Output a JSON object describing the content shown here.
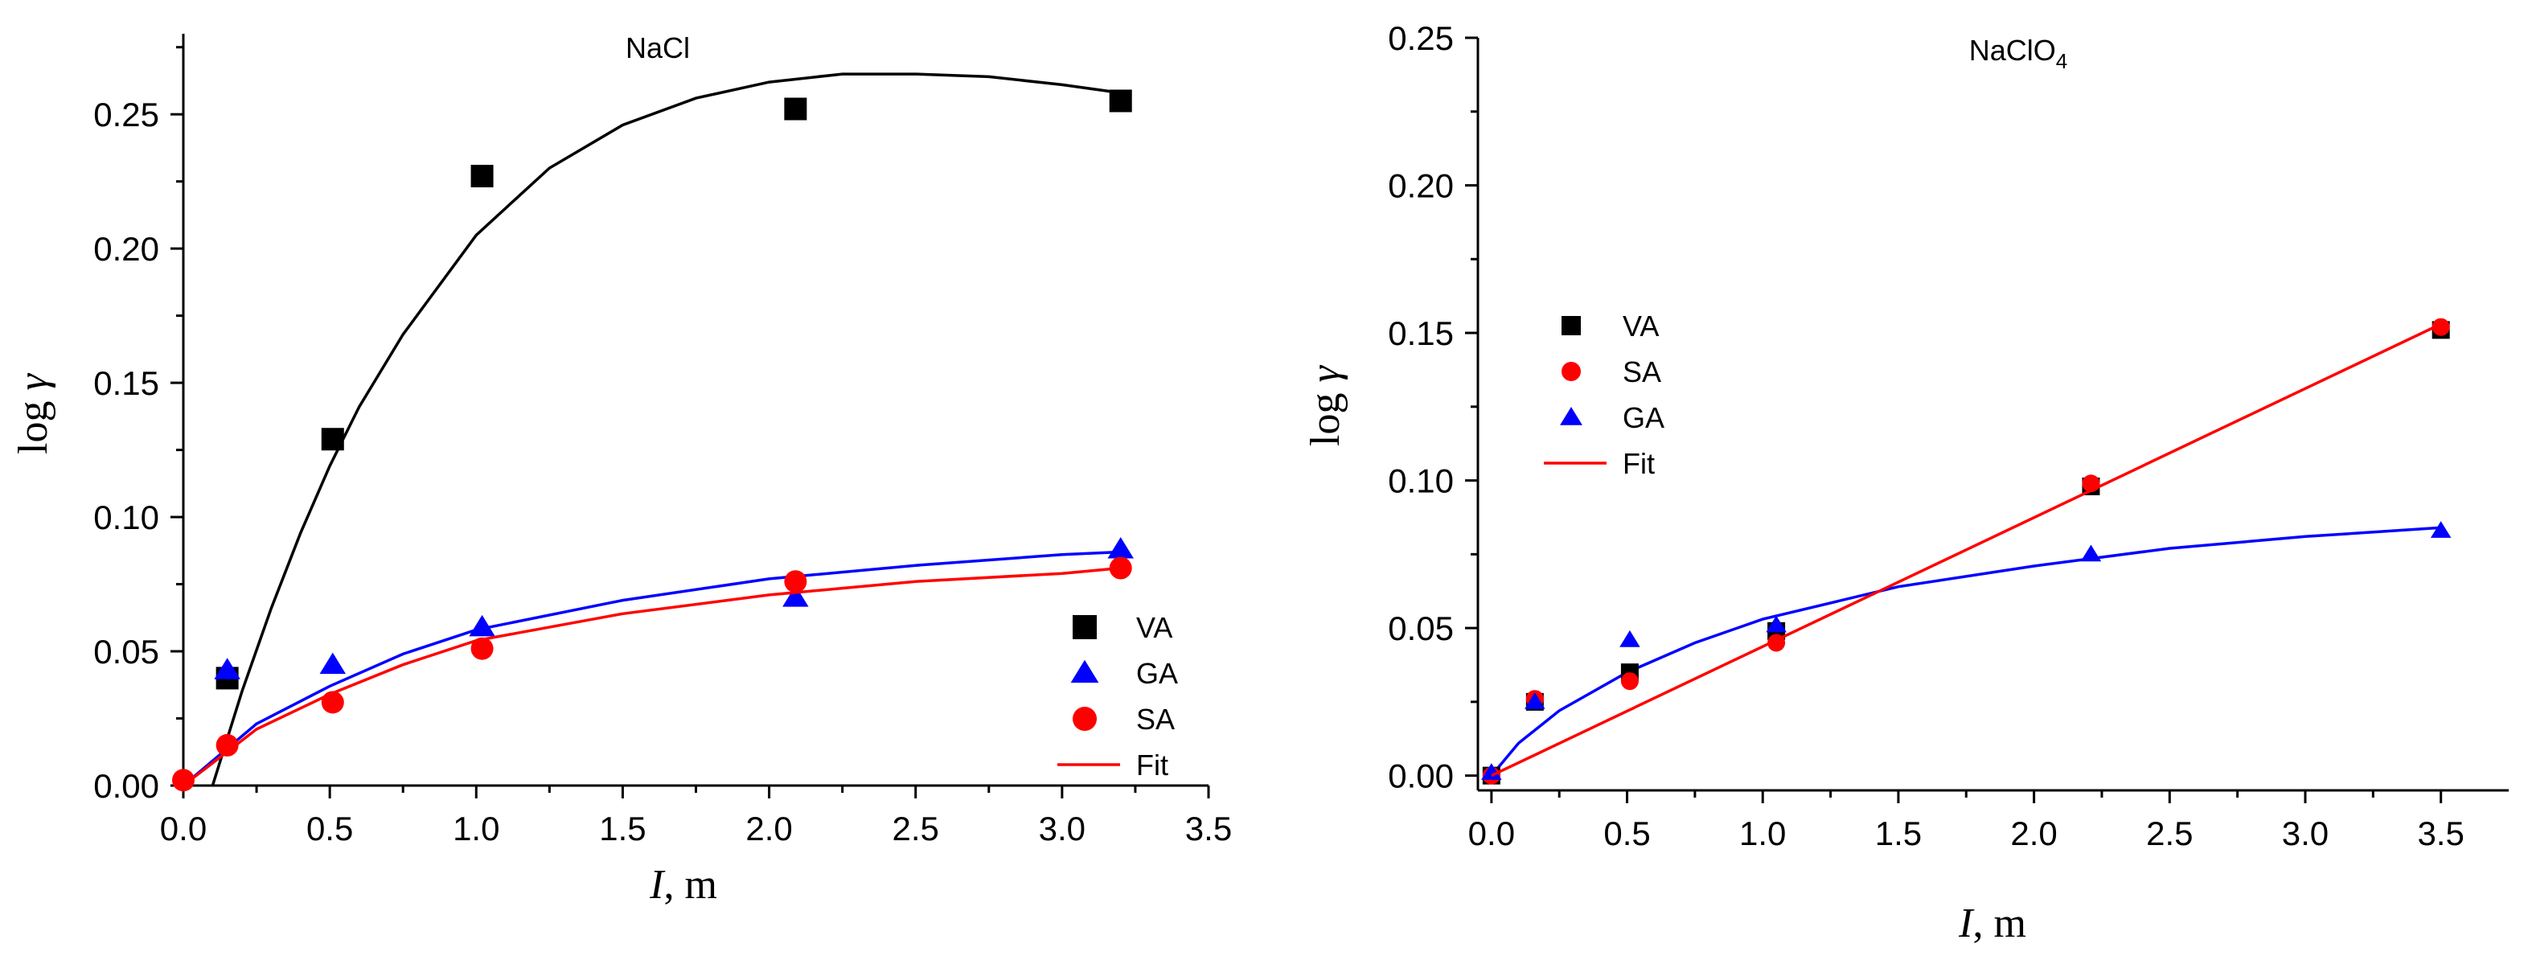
{
  "chart_data": [
    {
      "type": "scatter",
      "title": "NaCl",
      "xlabel_var": "I",
      "xlabel_unit": ", m",
      "ylabel_prefix": "log ",
      "ylabel_symbol": "γ",
      "xlim": [
        0,
        3.5
      ],
      "ylim": [
        0,
        0.28
      ],
      "xticks": [
        "0.0",
        "0.5",
        "1.0",
        "1.5",
        "2.0",
        "2.5",
        "3.0",
        "3.5"
      ],
      "yticks": [
        "0.00",
        "0.05",
        "0.10",
        "0.15",
        "0.20",
        "0.25"
      ],
      "grid": false,
      "legend_position": "bottom-right",
      "series": [
        {
          "name": "VA",
          "marker": "square",
          "color": "#000000",
          "points": [
            [
              0.15,
              0.04
            ],
            [
              0.51,
              0.129
            ],
            [
              1.02,
              0.227
            ],
            [
              2.09,
              0.252
            ],
            [
              3.2,
              0.255
            ]
          ]
        },
        {
          "name": "GA",
          "marker": "triangle",
          "color": "#0000ff",
          "points": [
            [
              0.15,
              0.043
            ],
            [
              0.51,
              0.045
            ],
            [
              1.02,
              0.059
            ],
            [
              2.09,
              0.07
            ],
            [
              3.2,
              0.088
            ]
          ]
        },
        {
          "name": "SA",
          "marker": "circle",
          "color": "#ff0000",
          "points": [
            [
              0.0,
              0.002
            ],
            [
              0.15,
              0.015
            ],
            [
              0.51,
              0.031
            ],
            [
              1.02,
              0.051
            ],
            [
              2.09,
              0.076
            ],
            [
              3.2,
              0.081
            ]
          ]
        },
        {
          "name": "Fit",
          "marker": "line",
          "color": "#ff0000",
          "points": [
            [
              0.0,
              0.0
            ],
            [
              0.25,
              0.021
            ],
            [
              0.5,
              0.034
            ],
            [
              0.75,
              0.045
            ],
            [
              1.0,
              0.054
            ],
            [
              1.5,
              0.064
            ],
            [
              2.0,
              0.071
            ],
            [
              2.5,
              0.076
            ],
            [
              3.0,
              0.079
            ],
            [
              3.2,
              0.081
            ]
          ]
        }
      ],
      "unlabeled_curves": [
        {
          "color": "#000000",
          "points": [
            [
              0.1,
              0.0
            ],
            [
              0.2,
              0.035
            ],
            [
              0.3,
              0.066
            ],
            [
              0.4,
              0.094
            ],
            [
              0.5,
              0.119
            ],
            [
              0.6,
              0.141
            ],
            [
              0.75,
              0.168
            ],
            [
              1.0,
              0.205
            ],
            [
              1.25,
              0.23
            ],
            [
              1.5,
              0.246
            ],
            [
              1.75,
              0.256
            ],
            [
              2.0,
              0.262
            ],
            [
              2.25,
              0.265
            ],
            [
              2.5,
              0.265
            ],
            [
              2.75,
              0.264
            ],
            [
              3.0,
              0.261
            ],
            [
              3.2,
              0.258
            ]
          ]
        },
        {
          "color": "#0000ff",
          "points": [
            [
              0.0,
              0.0
            ],
            [
              0.25,
              0.023
            ],
            [
              0.5,
              0.037
            ],
            [
              0.75,
              0.049
            ],
            [
              1.0,
              0.058
            ],
            [
              1.5,
              0.069
            ],
            [
              2.0,
              0.077
            ],
            [
              2.5,
              0.082
            ],
            [
              3.0,
              0.086
            ],
            [
              3.2,
              0.087
            ]
          ]
        }
      ]
    },
    {
      "type": "scatter",
      "title_main": "NaClO",
      "title_sub": "4",
      "xlabel_var": "I",
      "xlabel_unit": ", m",
      "ylabel_prefix": "log ",
      "ylabel_symbol": "γ",
      "xlim": [
        -0.05,
        3.75
      ],
      "ylim": [
        -0.005,
        0.25
      ],
      "xticks": [
        "0.0",
        "0.5",
        "1.0",
        "1.5",
        "2.0",
        "2.5",
        "3.0",
        "3.5"
      ],
      "yticks": [
        "0.00",
        "0.05",
        "0.10",
        "0.15",
        "0.20",
        "0.25"
      ],
      "grid": false,
      "legend_position": "upper-left",
      "series": [
        {
          "name": "VA",
          "marker": "square",
          "color": "#000000",
          "points": [
            [
              0.0,
              0.0
            ],
            [
              0.16,
              0.025
            ],
            [
              0.51,
              0.035
            ],
            [
              1.05,
              0.049
            ],
            [
              2.21,
              0.098
            ],
            [
              3.5,
              0.151
            ]
          ]
        },
        {
          "name": "SA",
          "marker": "circle",
          "color": "#ff0000",
          "points": [
            [
              0.0,
              0.0
            ],
            [
              0.16,
              0.026
            ],
            [
              0.51,
              0.032
            ],
            [
              1.05,
              0.045
            ],
            [
              2.21,
              0.099
            ],
            [
              3.5,
              0.152
            ]
          ]
        },
        {
          "name": "GA",
          "marker": "triangle",
          "color": "#0000ff",
          "points": [
            [
              0.0,
              0.001
            ],
            [
              0.16,
              0.025
            ],
            [
              0.51,
              0.046
            ],
            [
              1.05,
              0.051
            ],
            [
              2.21,
              0.075
            ],
            [
              3.5,
              0.083
            ]
          ]
        },
        {
          "name": "Fit",
          "marker": "line",
          "color": "#ff0000",
          "points": [
            [
              0.0,
              0.0
            ],
            [
              3.5,
              0.153
            ]
          ]
        }
      ],
      "unlabeled_curves": [
        {
          "color": "#0000ff",
          "points": [
            [
              0.0,
              0.0
            ],
            [
              0.1,
              0.011
            ],
            [
              0.25,
              0.022
            ],
            [
              0.5,
              0.035
            ],
            [
              0.75,
              0.045
            ],
            [
              1.0,
              0.053
            ],
            [
              1.5,
              0.064
            ],
            [
              2.0,
              0.071
            ],
            [
              2.5,
              0.077
            ],
            [
              3.0,
              0.081
            ],
            [
              3.5,
              0.084
            ]
          ]
        }
      ]
    }
  ]
}
